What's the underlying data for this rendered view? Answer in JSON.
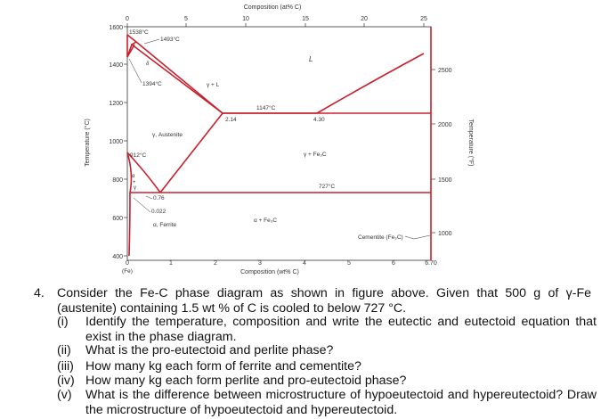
{
  "diagram": {
    "top_axis_label": "Composition (at% C)",
    "top_ticks": [
      "0",
      "5",
      "10",
      "15",
      "20",
      "25"
    ],
    "bottom_axis_label": "Composition (wt% C)",
    "bottom_ticks": [
      "0",
      "1",
      "2",
      "3",
      "4",
      "5",
      "6",
      "6.70"
    ],
    "bottom_start_label": "(Fe)",
    "left_axis_label": "Temperature (°C)",
    "left_ticks": [
      "1600",
      "1400",
      "1200",
      "1000",
      "800",
      "600",
      "400"
    ],
    "right_axis_label": "Temperature (°F)",
    "right_ticks": [
      "2500",
      "2000",
      "1500",
      "1000"
    ],
    "point_labels": {
      "t1538": "1538°C",
      "t1493": "1493°C",
      "t1394": "1394°C",
      "t1147": "1147°C",
      "t912": "912°C",
      "t727": "727°C",
      "c214": "2.14",
      "c430": "4.30",
      "c076": "0.76",
      "c0022": "0.022"
    },
    "phase_labels": {
      "delta": "δ",
      "liquid": "L",
      "gamma_liquid": "γ + L",
      "austenite": "γ, Austenite",
      "gamma_cem": "γ + Fe₃C",
      "alpha_gamma_a": "α",
      "alpha_gamma_plus": "+",
      "alpha_gamma_g": "γ",
      "ferrite": "α, Ferrite",
      "alpha_cem": "α + Fe₃C",
      "cementite": "Cementite (Fe₃C)"
    },
    "colors": {
      "lines": "#c8202c",
      "axes": "#333333"
    }
  },
  "question": {
    "number": "4.",
    "intro": "Consider the Fe-C phase diagram as shown in figure above. Given that 500 g of γ-Fe (austenite) containing 1.5 wt % of C is cooled to below 727 °C.",
    "items": [
      {
        "num": "(i)",
        "text": "Identify the temperature, composition and write the eutectic and eutectoid equation that exist in the phase diagram."
      },
      {
        "num": "(ii)",
        "text": "What is the pro-eutectoid and perlite phase?"
      },
      {
        "num": "(iii)",
        "text": "How many kg each form of ferrite and cementite?"
      },
      {
        "num": "(iv)",
        "text": "How many kg each form perlite and pro-eutectoid phase?"
      },
      {
        "num": "(v)",
        "text": "What is the difference between microstructure of hypoeutectoid and hypereutectoid? Draw the microstructure of hypoeutectoid and hypereutectoid."
      }
    ]
  }
}
